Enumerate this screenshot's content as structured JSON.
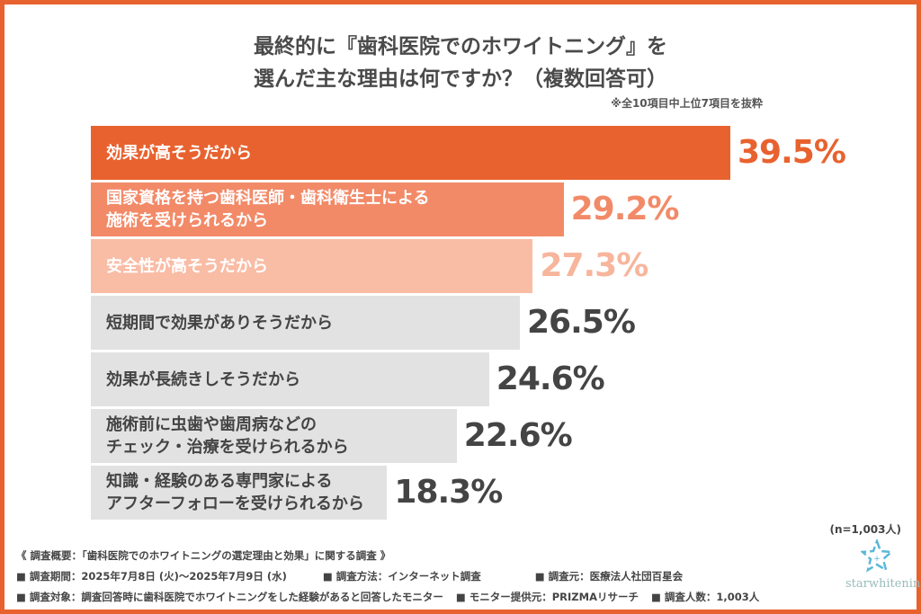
{
  "chart_data": {
    "type": "bar",
    "orientation": "horizontal",
    "title": [
      "最終的に『歯科医院でのホワイトニング』を",
      "選んだ主な理由は何ですか？（複数回答可）"
    ],
    "note": "※全10項目中上位7項目を抜粋",
    "unit": "%",
    "categories": [
      [
        "効果が高そうだから"
      ],
      [
        "国家資格を持つ歯科医師・歯科衛生士による",
        "施術を受けられるから"
      ],
      [
        "安全性が高そうだから"
      ],
      [
        "短期間で効果がありそうだから"
      ],
      [
        "効果が長続きしそうだから"
      ],
      [
        "施術前に虫歯や歯周病などの",
        "チェック・治療を受けられるから"
      ],
      [
        "知識・経験のある専門家による",
        "アフターフォローを受けられるから"
      ]
    ],
    "values": [
      39.5,
      29.2,
      27.3,
      26.5,
      24.6,
      22.6,
      18.3
    ],
    "value_labels": [
      "39.5%",
      "29.2%",
      "27.3%",
      "26.5%",
      "24.6%",
      "22.6%",
      "18.3%"
    ],
    "bar_colors": [
      "#e8622f",
      "#f28a68",
      "#f9bca5",
      "#e2e2e2",
      "#e2e2e2",
      "#e2e2e2",
      "#e2e2e2"
    ],
    "label_colors": [
      "#ffffff",
      "#ffffff",
      "#ffffff",
      "#444444",
      "#444444",
      "#444444",
      "#444444"
    ],
    "value_colors": [
      "#e8622f",
      "#f28a68",
      "#f7b59c",
      "#444444",
      "#444444",
      "#444444",
      "#444444"
    ],
    "sample": "(n=1,003人)"
  },
  "footer": {
    "summary": "《 調査概要：「歯科医院でのホワイトニングの選定理由と効果」に関する調査 》",
    "line1": [
      "■ 調査期間：2025年7月8日 (火)〜2025年7月9日 (水)",
      "■ 調査方法：インターネット調査",
      "■ 調査元：医療法人社団百星会"
    ],
    "line2": [
      "■ 調査対象：調査回答時に歯科医院でホワイトニングをした経験があると回答したモニター",
      "■ モニター提供元：PRIZMAリサーチ",
      "■ 調査人数：1,003人"
    ]
  },
  "logo": {
    "text": "starwhitening",
    "brand_color": "#5bb8d8"
  },
  "border_color": "#e8622f"
}
